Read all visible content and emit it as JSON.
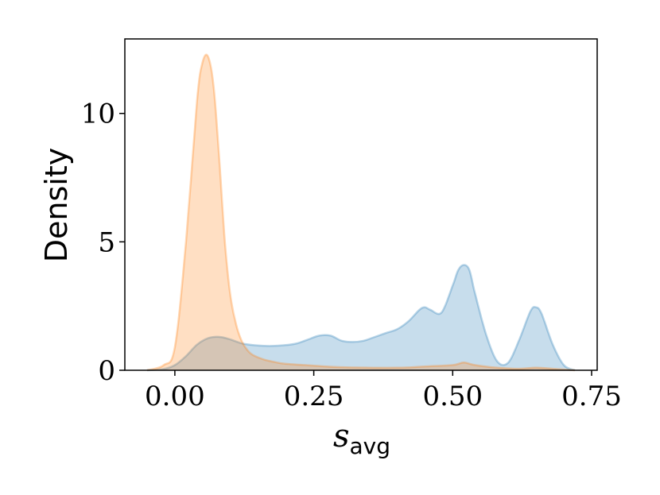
{
  "chart_data": {
    "type": "area",
    "xlabel_main": "s",
    "xlabel_sub": "avg",
    "ylabel": "Density",
    "xlim": [
      -0.09,
      0.76
    ],
    "ylim": [
      0,
      12.9
    ],
    "xticks": [
      0.0,
      0.25,
      0.5,
      0.75
    ],
    "xtick_labels": [
      "0.00",
      "0.25",
      "0.50",
      "0.75"
    ],
    "yticks": [
      0,
      5,
      10
    ],
    "ytick_labels": [
      "0",
      "5",
      "10"
    ],
    "grid": false,
    "series": [
      {
        "color": "#1f77b4",
        "x": [
          -0.05,
          -0.02,
          0.0,
          0.02,
          0.04,
          0.06,
          0.08,
          0.1,
          0.12,
          0.14,
          0.16,
          0.18,
          0.2,
          0.22,
          0.24,
          0.26,
          0.28,
          0.3,
          0.32,
          0.34,
          0.36,
          0.38,
          0.4,
          0.42,
          0.44,
          0.45,
          0.46,
          0.48,
          0.5,
          0.51,
          0.52,
          0.53,
          0.54,
          0.56,
          0.58,
          0.6,
          0.62,
          0.64,
          0.65,
          0.66,
          0.68,
          0.7,
          0.72
        ],
        "y": [
          0.0,
          0.05,
          0.2,
          0.55,
          1.0,
          1.25,
          1.3,
          1.2,
          1.05,
          0.98,
          0.95,
          0.95,
          0.98,
          1.05,
          1.2,
          1.35,
          1.35,
          1.15,
          1.1,
          1.15,
          1.3,
          1.45,
          1.6,
          1.9,
          2.35,
          2.45,
          2.35,
          2.25,
          3.3,
          3.9,
          4.1,
          3.9,
          3.0,
          1.4,
          0.35,
          0.3,
          1.2,
          2.3,
          2.45,
          2.2,
          1.0,
          0.2,
          0.0
        ]
      },
      {
        "color": "#ff7f0e",
        "x": [
          -0.05,
          -0.02,
          0.0,
          0.02,
          0.04,
          0.05,
          0.06,
          0.07,
          0.08,
          0.09,
          0.1,
          0.11,
          0.12,
          0.13,
          0.14,
          0.16,
          0.18,
          0.2,
          0.25,
          0.3,
          0.4,
          0.45,
          0.5,
          0.52,
          0.54,
          0.58,
          0.62,
          0.65,
          0.68,
          0.72
        ],
        "y": [
          0.0,
          0.2,
          0.9,
          5.0,
          10.5,
          12.0,
          12.2,
          11.0,
          8.2,
          5.0,
          2.9,
          1.8,
          1.15,
          0.8,
          0.6,
          0.42,
          0.32,
          0.25,
          0.18,
          0.12,
          0.1,
          0.15,
          0.2,
          0.3,
          0.2,
          0.1,
          0.06,
          0.1,
          0.06,
          0.0
        ]
      }
    ]
  }
}
